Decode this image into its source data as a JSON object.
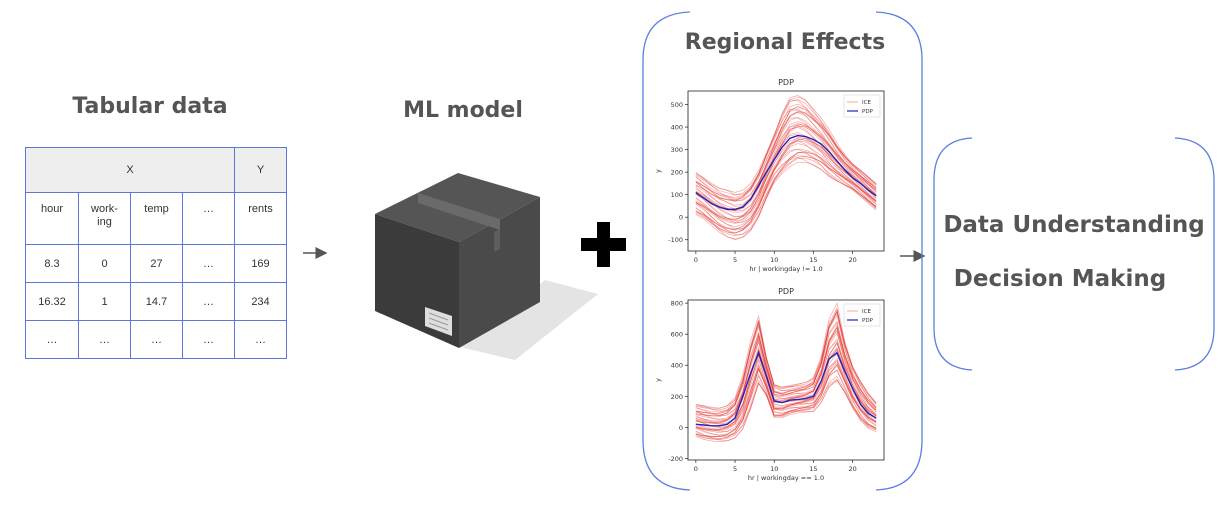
{
  "tabular": {
    "title": "Tabular data",
    "header_x": "X",
    "header_y": "Y",
    "columns": [
      "hour",
      "work-\ning",
      "temp",
      "…",
      "rents"
    ],
    "rows": [
      [
        "8.3",
        "0",
        "27",
        "…",
        "169"
      ],
      [
        "16.32",
        "1",
        "14.7",
        "…",
        "234"
      ],
      [
        "…",
        "…",
        "…",
        "…",
        "…"
      ]
    ]
  },
  "model": {
    "title": "ML model"
  },
  "regional": {
    "title": "Regional Effects"
  },
  "outputs": {
    "line1": "Data Understanding",
    "line2": "Decision Making"
  },
  "colors": {
    "bracket": "#5b7fe0",
    "table_border": "#5a78d8",
    "ice": "#e0261f",
    "pdp": "#2222bb",
    "heading": "#555555"
  },
  "chart_data": [
    {
      "type": "line",
      "title": "PDP",
      "xlabel": "hr | workingday != 1.0",
      "ylabel": "y",
      "xlim": [
        -1,
        24
      ],
      "ylim": [
        -150,
        560
      ],
      "xticks": [
        0,
        5,
        10,
        15,
        20
      ],
      "yticks": [
        -100,
        0,
        100,
        200,
        300,
        400,
        500
      ],
      "legend": {
        "placement": "top-right",
        "entries": [
          "ICE",
          "PDP"
        ]
      },
      "series": [
        {
          "name": "PDP",
          "x": [
            0,
            1,
            2,
            3,
            4,
            5,
            6,
            7,
            8,
            9,
            10,
            11,
            12,
            13,
            14,
            15,
            16,
            17,
            18,
            19,
            20,
            21,
            22,
            23
          ],
          "values": [
            110,
            85,
            60,
            45,
            35,
            35,
            45,
            80,
            140,
            200,
            255,
            310,
            350,
            362,
            358,
            345,
            325,
            290,
            250,
            210,
            175,
            150,
            120,
            95
          ]
        }
      ],
      "ice_band": {
        "x": [
          0,
          1,
          2,
          3,
          4,
          5,
          6,
          7,
          8,
          9,
          10,
          11,
          12,
          13,
          14,
          15,
          16,
          17,
          18,
          19,
          20,
          21,
          22,
          23
        ],
        "low": [
          10,
          -10,
          -40,
          -70,
          -90,
          -100,
          -90,
          -60,
          0,
          80,
          150,
          190,
          220,
          240,
          240,
          230,
          210,
          180,
          160,
          140,
          120,
          90,
          60,
          30
        ],
        "high": [
          200,
          175,
          150,
          130,
          120,
          110,
          120,
          150,
          210,
          290,
          370,
          460,
          530,
          540,
          520,
          480,
          440,
          390,
          330,
          280,
          240,
          210,
          180,
          150
        ]
      }
    },
    {
      "type": "line",
      "title": "PDP",
      "xlabel": "hr | workingday == 1.0",
      "ylabel": "y",
      "xlim": [
        -1,
        24
      ],
      "ylim": [
        -210,
        820
      ],
      "xticks": [
        0,
        5,
        10,
        15,
        20
      ],
      "yticks": [
        -200,
        0,
        200,
        400,
        600,
        800
      ],
      "legend": {
        "placement": "top-right",
        "entries": [
          "ICE",
          "PDP"
        ]
      },
      "series": [
        {
          "name": "PDP",
          "x": [
            0,
            1,
            2,
            3,
            4,
            5,
            6,
            7,
            8,
            9,
            10,
            11,
            12,
            13,
            14,
            15,
            16,
            17,
            18,
            19,
            20,
            21,
            22,
            23
          ],
          "values": [
            20,
            15,
            10,
            10,
            20,
            60,
            200,
            350,
            480,
            330,
            170,
            160,
            175,
            180,
            185,
            200,
            300,
            440,
            480,
            360,
            250,
            150,
            90,
            60
          ]
        }
      ],
      "ice_band": {
        "x": [
          0,
          1,
          2,
          3,
          4,
          5,
          6,
          7,
          8,
          9,
          10,
          11,
          12,
          13,
          14,
          15,
          16,
          17,
          18,
          19,
          20,
          21,
          22,
          23
        ],
        "low": [
          -60,
          -80,
          -90,
          -95,
          -90,
          -70,
          -10,
          120,
          280,
          200,
          60,
          60,
          80,
          90,
          95,
          100,
          160,
          260,
          300,
          220,
          120,
          40,
          -10,
          -30
        ],
        "high": [
          150,
          140,
          130,
          125,
          140,
          190,
          340,
          560,
          720,
          460,
          280,
          260,
          270,
          280,
          290,
          320,
          460,
          700,
          800,
          560,
          400,
          300,
          220,
          160
        ]
      }
    }
  ]
}
